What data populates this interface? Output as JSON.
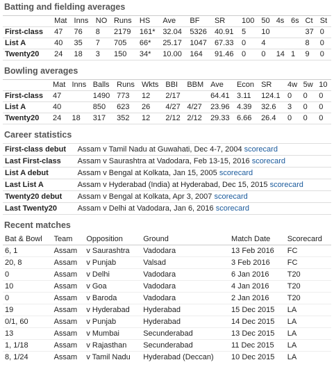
{
  "batting": {
    "title": "Batting and fielding averages",
    "header": [
      null,
      "Mat",
      "Inns",
      "NO",
      "Runs",
      "HS",
      "Ave",
      "BF",
      "SR",
      "100",
      "50",
      "4s",
      "6s",
      "Ct",
      "St"
    ],
    "rows": [
      [
        "First-class",
        "47",
        "76",
        "8",
        "2179",
        "161*",
        "32.04",
        "5326",
        "40.91",
        "5",
        "10",
        null,
        null,
        "37",
        "0"
      ],
      [
        "List A",
        "40",
        "35",
        "7",
        "705",
        "66*",
        "25.17",
        "1047",
        "67.33",
        "0",
        "4",
        null,
        null,
        "8",
        "0"
      ],
      [
        "Twenty20",
        "24",
        "18",
        "3",
        "150",
        "34*",
        "10.00",
        "164",
        "91.46",
        "0",
        "0",
        "14",
        "1",
        "9",
        "0"
      ]
    ]
  },
  "bowling": {
    "title": "Bowling averages",
    "header": [
      null,
      "Mat",
      "Inns",
      "Balls",
      "Runs",
      "Wkts",
      "BBI",
      "BBM",
      "Ave",
      "Econ",
      "SR",
      "4w",
      "5w",
      "10"
    ],
    "rows": [
      [
        "First-class",
        "47",
        null,
        "1490",
        "773",
        "12",
        "2/17",
        null,
        "64.41",
        "3.11",
        "124.1",
        "0",
        "0",
        "0"
      ],
      [
        "List A",
        "40",
        null,
        "850",
        "623",
        "26",
        "4/27",
        "4/27",
        "23.96",
        "4.39",
        "32.6",
        "3",
        "0",
        "0"
      ],
      [
        "Twenty20",
        "24",
        "18",
        "317",
        "352",
        "12",
        "2/12",
        "2/12",
        "29.33",
        "6.66",
        "26.4",
        "0",
        "0",
        "0"
      ]
    ]
  },
  "career": {
    "title": "Career statistics",
    "rows": [
      {
        "label": "First-class debut",
        "text": "Assam v Tamil Nadu at Guwahati, Dec 4-7, 2004",
        "link": "scorecard"
      },
      {
        "label": "Last First-class",
        "text": "Assam v Saurashtra at Vadodara, Feb 13-15, 2016",
        "link": "scorecard"
      },
      {
        "label": "List A debut",
        "text": "Assam v Bengal at Kolkata, Jan 15, 2005",
        "link": "scorecard"
      },
      {
        "label": "Last List A",
        "text": "Assam v Hyderabad (India) at Hyderabad, Dec 15, 2015",
        "link": "scorecard"
      },
      {
        "label": "Twenty20 debut",
        "text": "Assam v Bengal at Kolkata, Apr 3, 2007",
        "link": "scorecard"
      },
      {
        "label": "Last Twenty20",
        "text": "Assam v Delhi at Vadodara, Jan 6, 2016",
        "link": "scorecard"
      }
    ]
  },
  "recent": {
    "title": "Recent matches",
    "header": [
      "Bat & Bowl",
      "Team",
      "Opposition",
      "Ground",
      "Match Date",
      "Scorecard"
    ],
    "rows": [
      [
        "6, 1",
        "Assam",
        "v Saurashtra",
        "Vadodara",
        "13 Feb 2016",
        "FC"
      ],
      [
        "20, 8",
        "Assam",
        "v Punjab",
        "Valsad",
        "3 Feb 2016",
        "FC"
      ],
      [
        "0",
        "Assam",
        "v Delhi",
        "Vadodara",
        "6 Jan 2016",
        "T20"
      ],
      [
        "10",
        "Assam",
        "v Goa",
        "Vadodara",
        "4 Jan 2016",
        "T20"
      ],
      [
        "0",
        "Assam",
        "v Baroda",
        "Vadodara",
        "2 Jan 2016",
        "T20"
      ],
      [
        "19",
        "Assam",
        "v Hyderabad",
        "Hyderabad",
        "15 Dec 2015",
        "LA"
      ],
      [
        "0/1, 60",
        "Assam",
        "v Punjab",
        "Hyderabad",
        "14 Dec 2015",
        "LA"
      ],
      [
        "13",
        "Assam",
        "v Mumbai",
        "Secunderabad",
        "13 Dec 2015",
        "LA"
      ],
      [
        "1, 1/18",
        "Assam",
        "v Rajasthan",
        "Secunderabad",
        "11 Dec 2015",
        "LA"
      ],
      [
        "8, 1/24",
        "Assam",
        "v Tamil Nadu",
        "Hyderabad (Deccan)",
        "10 Dec 2015",
        "LA"
      ]
    ]
  }
}
